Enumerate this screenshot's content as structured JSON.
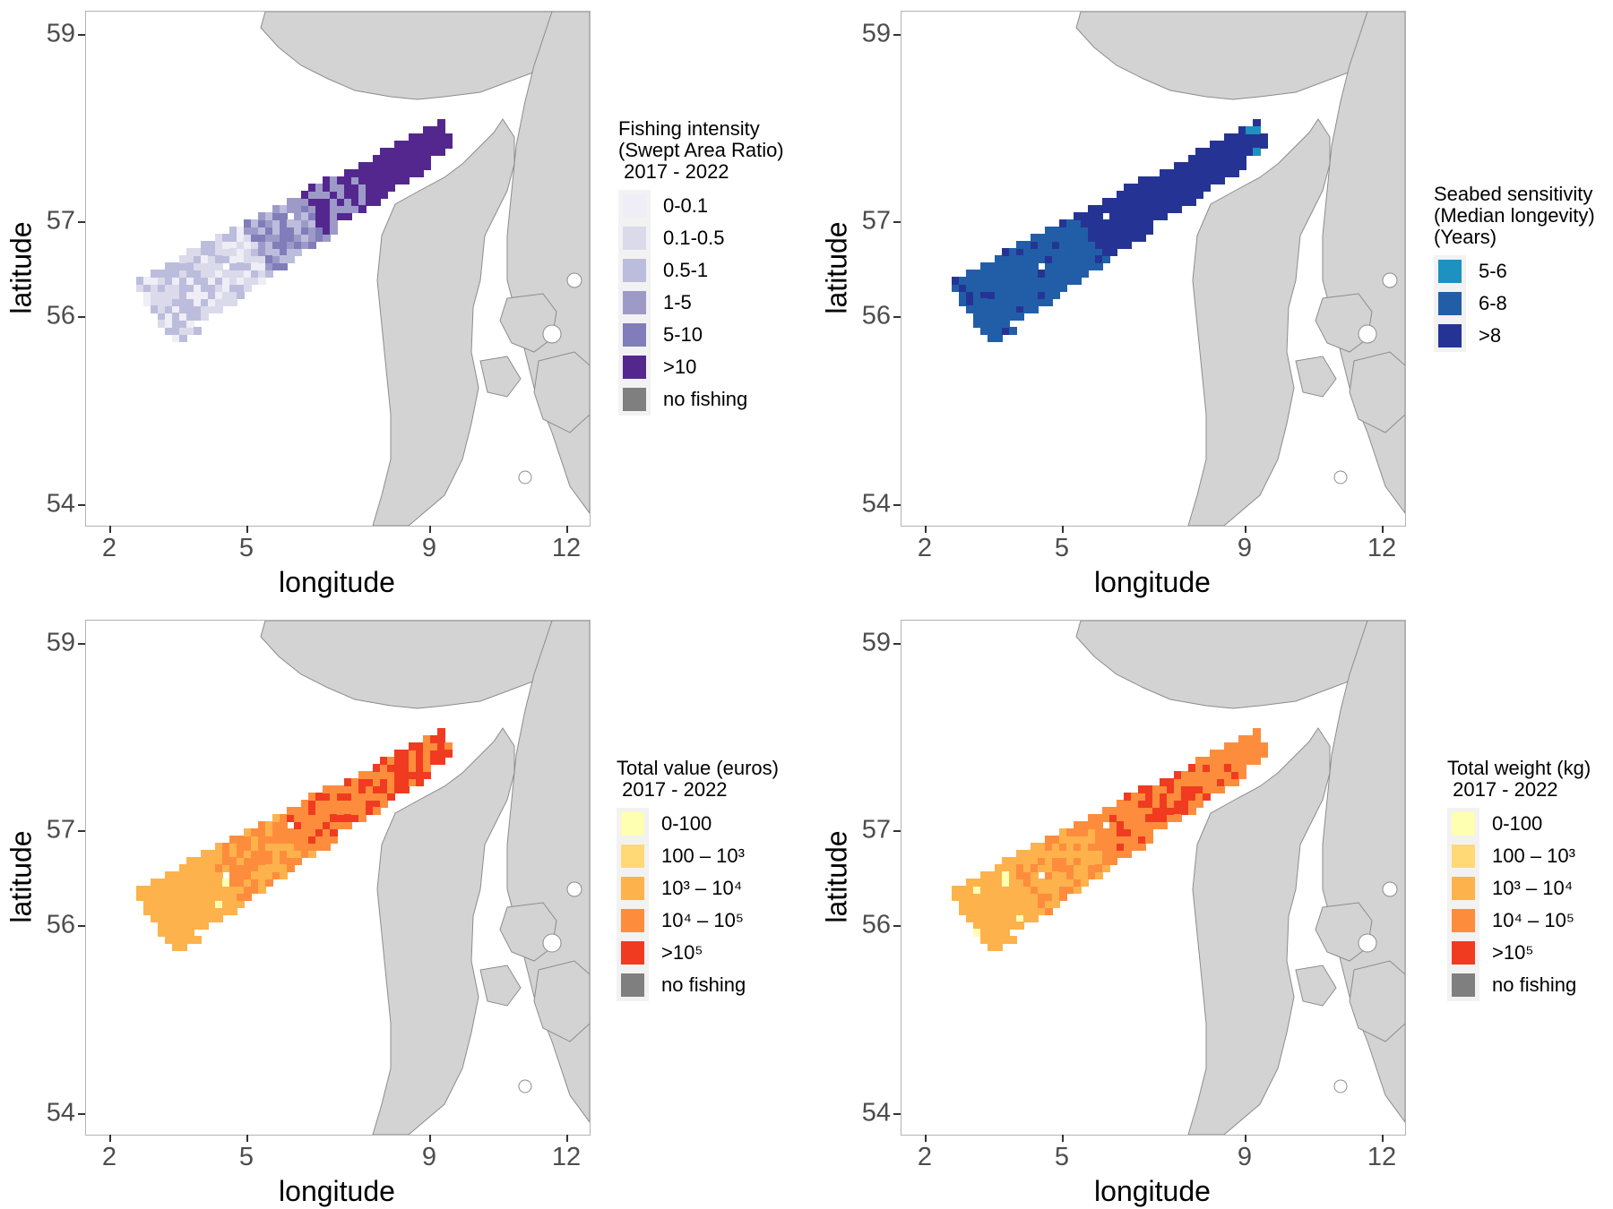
{
  "panels": [
    {
      "xlabel": "longitude",
      "ylabel": "latitude",
      "x_ticks": [
        "2",
        "5",
        "9",
        "12"
      ],
      "y_ticks": [
        "59",
        "57",
        "56",
        "54"
      ],
      "legend": {
        "title": "Fishing intensity\n(Swept Area Ratio)\n 2017 - 2022",
        "items": [
          {
            "label": "0-0.1",
            "color": "#efedf5"
          },
          {
            "label": "0.1-0.5",
            "color": "#dadaeb"
          },
          {
            "label": "0.5-1",
            "color": "#bcbddc"
          },
          {
            "label": "1-5",
            "color": "#9e9ac8"
          },
          {
            "label": "5-10",
            "color": "#807dba"
          },
          {
            "label": ">10",
            "color": "#54278f"
          },
          {
            "label": "no fishing",
            "color": "#7f7f7f"
          }
        ]
      }
    },
    {
      "xlabel": "longitude",
      "ylabel": "latitude",
      "x_ticks": [
        "2",
        "5",
        "9",
        "12"
      ],
      "y_ticks": [
        "59",
        "57",
        "56",
        "54"
      ],
      "legend": {
        "title": "Seabed sensitivity\n(Median longevity)\n(Years)",
        "items": [
          {
            "label": "5-6",
            "color": "#1d91c0"
          },
          {
            "label": "6-8",
            "color": "#225ea8"
          },
          {
            "label": ">8",
            "color": "#253494"
          }
        ]
      }
    },
    {
      "xlabel": "longitude",
      "ylabel": "latitude",
      "x_ticks": [
        "2",
        "5",
        "9",
        "12"
      ],
      "y_ticks": [
        "59",
        "57",
        "56",
        "54"
      ],
      "legend": {
        "title": "Total value (euros)\n 2017 - 2022",
        "items": [
          {
            "label": "0-100",
            "color": "#ffffb2"
          },
          {
            "label": "100 – 10³",
            "color": "#fed976"
          },
          {
            "label": "10³ – 10⁴",
            "color": "#feb24c"
          },
          {
            "label": "10⁴ – 10⁵",
            "color": "#fd8d3c"
          },
          {
            "label": ">10⁵",
            "color": "#f03b20"
          },
          {
            "label": "no fishing",
            "color": "#7f7f7f"
          }
        ]
      }
    },
    {
      "xlabel": "longitude",
      "ylabel": "latitude",
      "x_ticks": [
        "2",
        "5",
        "9",
        "12"
      ],
      "y_ticks": [
        "59",
        "57",
        "56",
        "54"
      ],
      "legend": {
        "title": "Total weight (kg)\n 2017 - 2022",
        "items": [
          {
            "label": "0-100",
            "color": "#ffffb2"
          },
          {
            "label": "100 – 10³",
            "color": "#fed976"
          },
          {
            "label": "10³ – 10⁴",
            "color": "#feb24c"
          },
          {
            "label": "10⁴ – 10⁵",
            "color": "#fd8d3c"
          },
          {
            "label": ">10⁵",
            "color": "#f03b20"
          },
          {
            "label": "no fishing",
            "color": "#7f7f7f"
          }
        ]
      }
    }
  ],
  "colors": {
    "land": "#d3d3d3",
    "land_border": "#8c8c8c",
    "sea": "#ffffff"
  }
}
